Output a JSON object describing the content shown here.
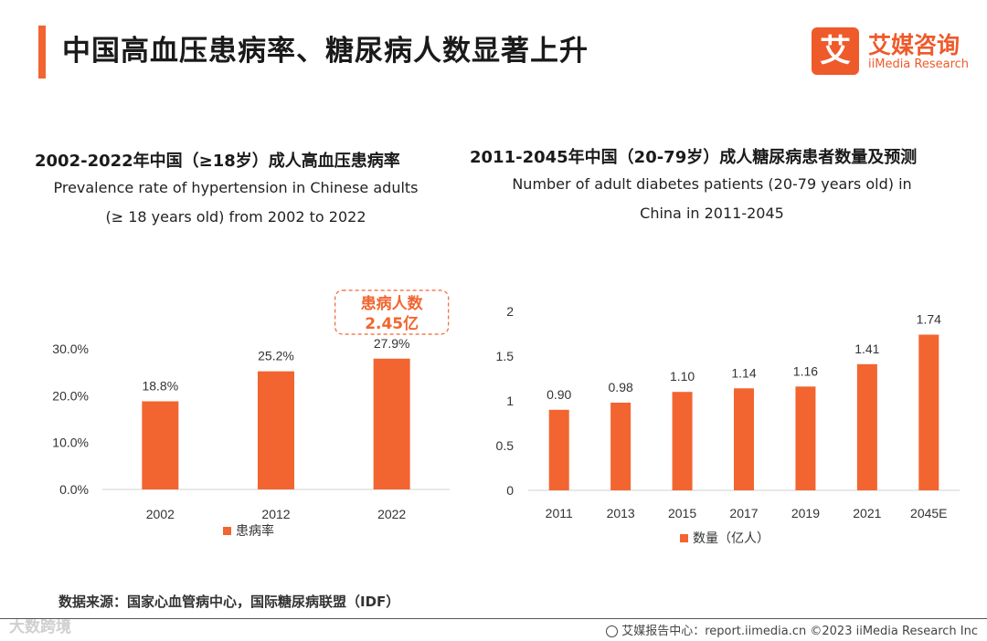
{
  "page": {
    "title": "中国高血压患病率、糖尿病人数显著上升",
    "source": "数据来源：国家心血管病中心，国际糖尿病联盟（IDF）",
    "watermark": "大数跨境",
    "footer": "艾媒报告中心：report.iimedia.cn  ©2023  iiMedia Research  Inc"
  },
  "logo": {
    "mark": "艾",
    "name_cn": "艾媒咨询",
    "name_en": "iiMedia Research"
  },
  "colors": {
    "accent": "#f26530",
    "bar": "#f26530",
    "text": "#222222"
  },
  "chart_data": [
    {
      "type": "bar",
      "title": "2002-2022年中国（≥18岁）成人高血压患病率",
      "subtitle_line1": "Prevalence rate of hypertension in Chinese adults",
      "subtitle_line2": "(≥ 18 years old) from 2002 to 2022",
      "categories": [
        "2002",
        "2012",
        "2022"
      ],
      "values": [
        18.8,
        25.2,
        27.9
      ],
      "data_labels": [
        "18.8%",
        "25.2%",
        "27.9%"
      ],
      "yticks": [
        "0.0%",
        "10.0%",
        "20.0%",
        "30.0%"
      ],
      "ylim": [
        0,
        30
      ],
      "legend": "患病率",
      "callout_line1": "患病人数",
      "callout_line2": "2.45亿"
    },
    {
      "type": "bar",
      "title": "2011-2045年中国（20-79岁）成人糖尿病患者数量及预测",
      "subtitle_line1": "Number of adult diabetes patients (20-79 years old) in",
      "subtitle_line2": "China in 2011-2045",
      "categories": [
        "2011",
        "2013",
        "2015",
        "2017",
        "2019",
        "2021",
        "2045E"
      ],
      "values": [
        0.9,
        0.98,
        1.1,
        1.14,
        1.16,
        1.41,
        1.74
      ],
      "data_labels": [
        "0.90",
        "0.98",
        "1.10",
        "1.14",
        "1.16",
        "1.41",
        "1.74"
      ],
      "yticks": [
        "0",
        "0.5",
        "1",
        "1.5",
        "2"
      ],
      "ylim": [
        0,
        2
      ],
      "legend": "数量（亿人）"
    }
  ]
}
